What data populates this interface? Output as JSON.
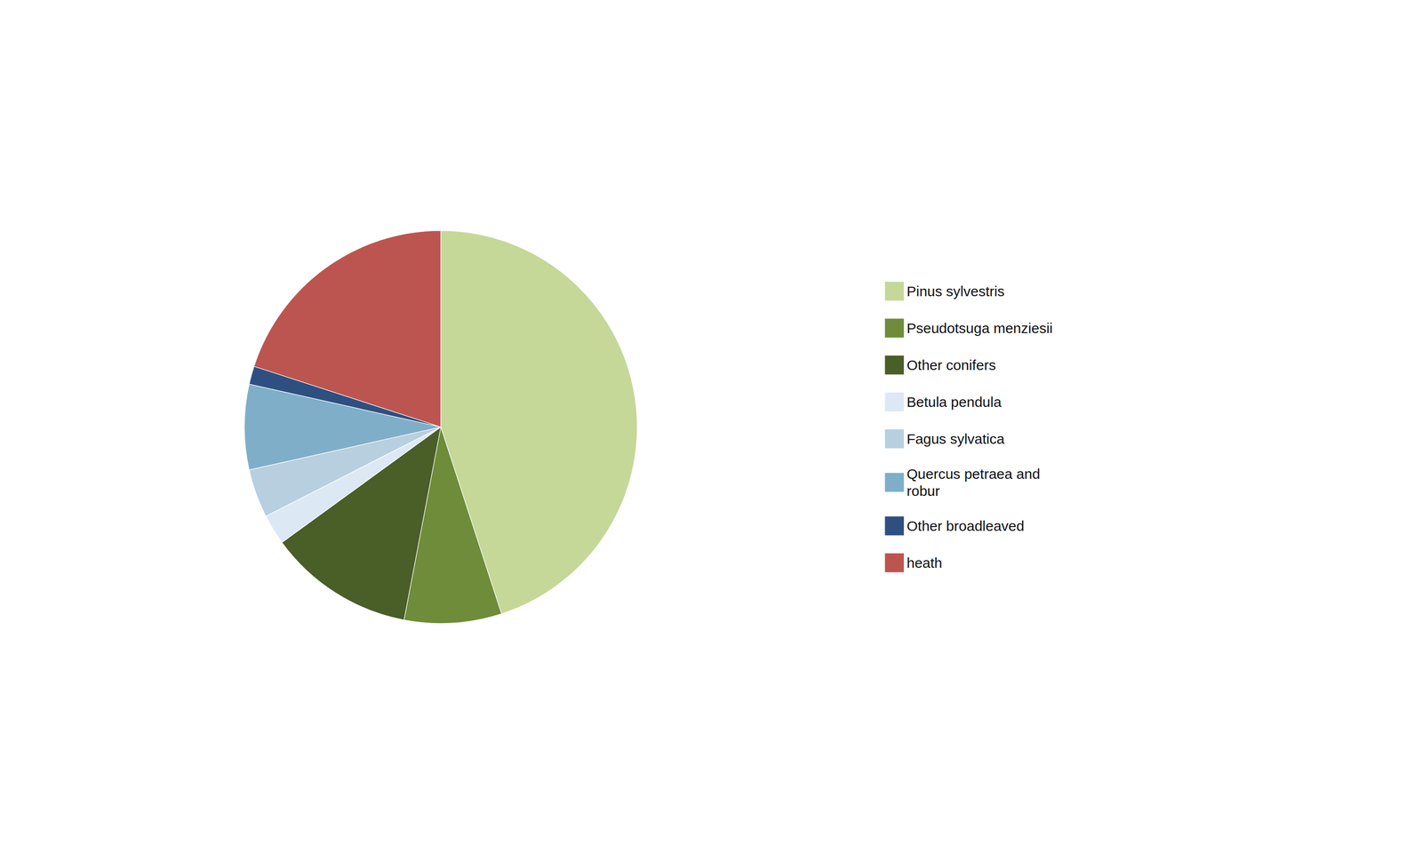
{
  "chart_data": {
    "type": "pie",
    "categories": [
      "Pinus sylvestris",
      "Pseudotsuga menziesii",
      "Other conifers",
      "Betula pendula",
      "Fagus sylvatica",
      "Quercus petraea and\nrobur",
      "Other broadleaved",
      "heath"
    ],
    "values": [
      45.0,
      8.0,
      12.0,
      2.5,
      4.0,
      7.0,
      1.5,
      20.0
    ],
    "colors": [
      "#c5d898",
      "#6e8c3a",
      "#4a5e28",
      "#dce9f5",
      "#b8cfe0",
      "#7faec8",
      "#2e5080",
      "#bc5550"
    ],
    "legend": "right"
  }
}
